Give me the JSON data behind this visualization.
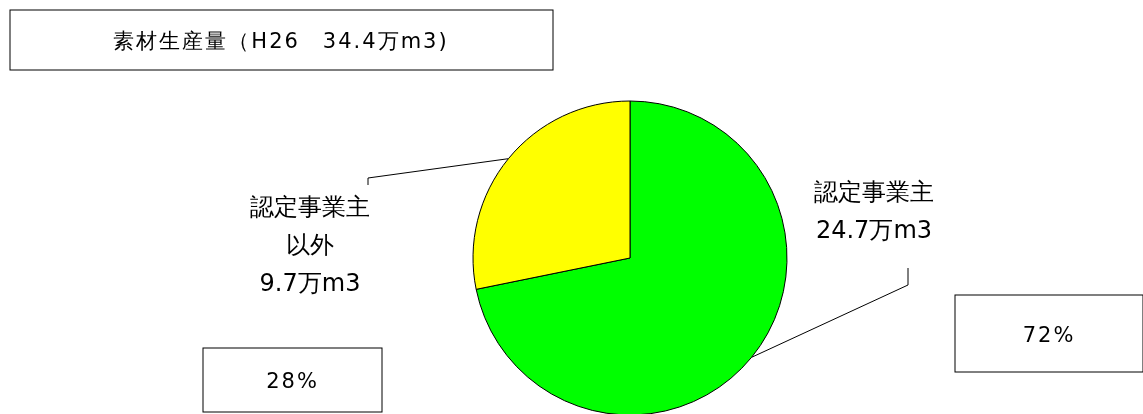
{
  "chart_data": {
    "type": "pie",
    "title": "素材生産量（H26　34.4万m3)",
    "categories": [
      "認定事業主",
      "認定事業主以外"
    ],
    "values": [
      24.7,
      9.7
    ],
    "value_labels": [
      "24.7万m3",
      "9.7万m3"
    ],
    "colors": [
      "#00ff00",
      "#ffff00"
    ],
    "annotations": [
      "72%",
      "28%"
    ],
    "legend": false
  }
}
